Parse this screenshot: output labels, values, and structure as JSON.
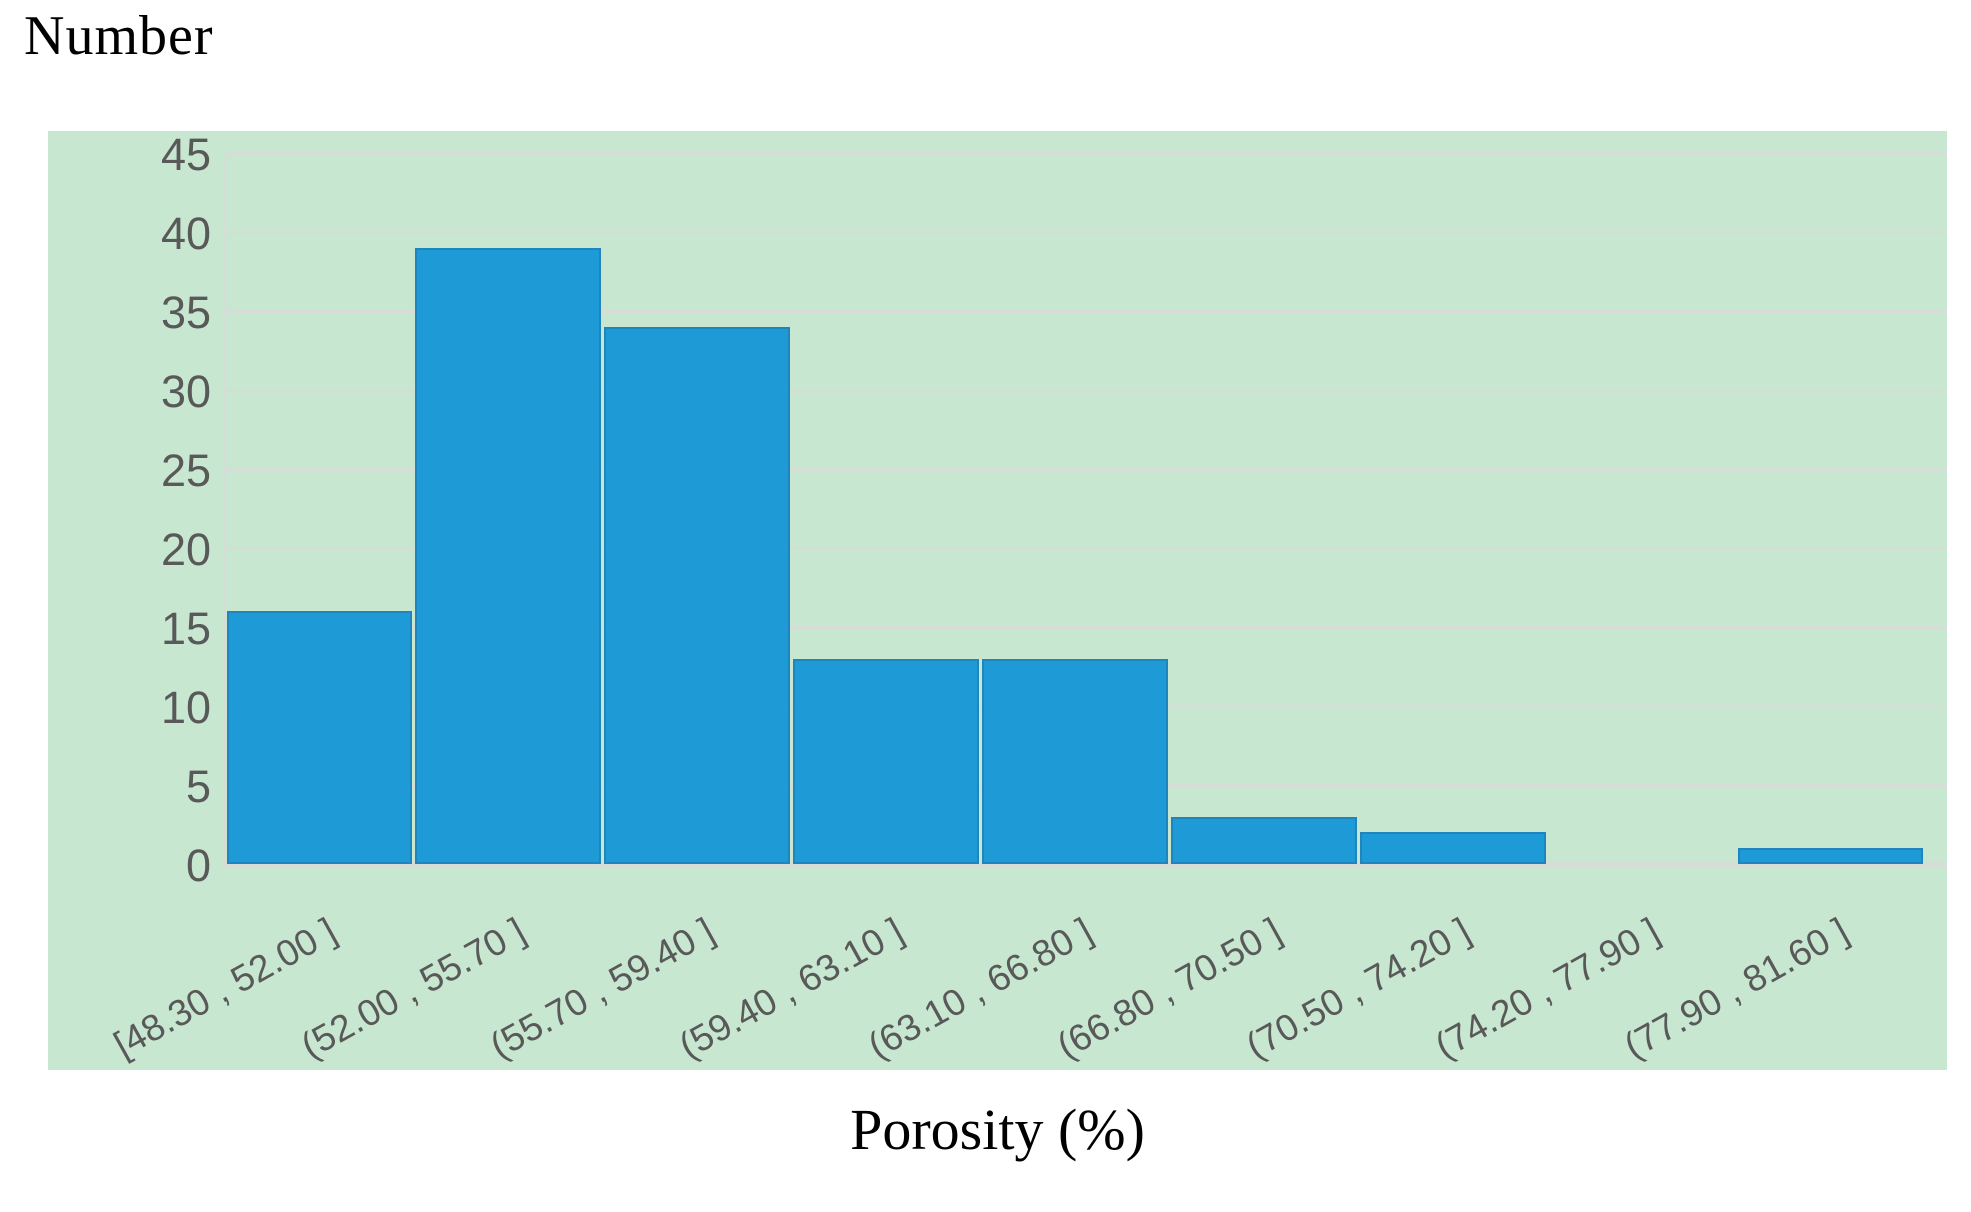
{
  "chart_data": {
    "type": "bar",
    "title": "",
    "ylabel": "Number",
    "xlabel": "Porosity (%)",
    "categories": [
      "[48.30 , 52.00 ]",
      "(52.00 , 55.70 ]",
      "(55.70 , 59.40 ]",
      "(59.40 , 63.10 ]",
      "(63.10 , 66.80 ]",
      "(66.80 , 70.50 ]",
      "(70.50 , 74.20 ]",
      "(74.20 , 77.90 ]",
      "(77.90 , 81.60 ]"
    ],
    "values": [
      16,
      39,
      34,
      13,
      13,
      3,
      2,
      0,
      1
    ],
    "ylim": [
      0,
      45
    ],
    "yticks": [
      0,
      5,
      10,
      15,
      20,
      25,
      30,
      35,
      40,
      45
    ],
    "grid": "horizontal",
    "legend": "none",
    "colors": {
      "page_bg": "#FFFFFF",
      "plot_bg": "#C8E7D1",
      "bar_fill": "#1E9AD6",
      "bar_border": "#1F85BE",
      "gridline": "#D6DCD6",
      "tick_label": "#595959",
      "title_text": "#000000"
    }
  }
}
